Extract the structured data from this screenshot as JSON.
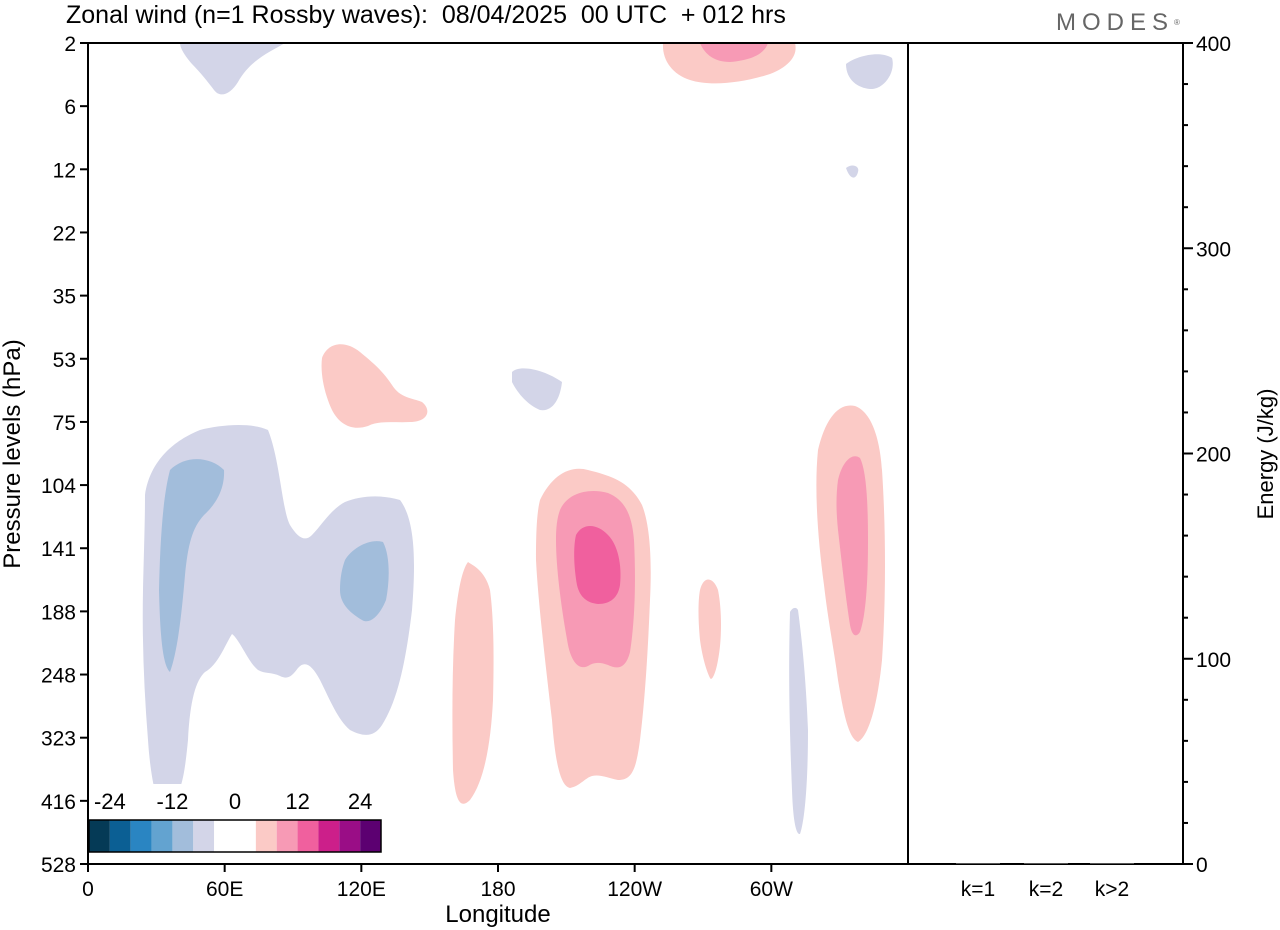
{
  "header": {
    "title": "Zonal wind (n=1 Rossby waves):  08/04/2025  00 UTC  + 012 hrs",
    "brand": "MODES",
    "brand_mark": "®"
  },
  "chart_data": [
    {
      "type": "heatmap",
      "title": "Zonal wind (n=1 Rossby waves):  08/04/2025  00 UTC  + 012 hrs",
      "xlabel": "Longitude",
      "ylabel": "Pressure levels (hPa)",
      "x_ticks": [
        "0",
        "60E",
        "120E",
        "180",
        "120W",
        "60W"
      ],
      "x_tick_values": [
        0,
        60,
        120,
        180,
        240,
        300
      ],
      "xlim": [
        0,
        360
      ],
      "y_ticks": [
        "2",
        "6",
        "12",
        "22",
        "35",
        "53",
        "75",
        "104",
        "141",
        "188",
        "248",
        "323",
        "416",
        "528"
      ],
      "y_scale": "model levels (uneven pressure spacing)",
      "grid": false,
      "colorbar": {
        "placement": "bottom-left inset",
        "tick_labels": [
          "-24",
          "-12",
          "0",
          "12",
          "24"
        ],
        "tick_values": [
          -24,
          -12,
          0,
          12,
          24
        ],
        "bins": [
          -28,
          -24,
          -20,
          -16,
          -12,
          -8,
          -4,
          4,
          8,
          12,
          16,
          20,
          24,
          28
        ],
        "colors": [
          "#053a56",
          "#0b5f94",
          "#2a85c2",
          "#63a3d0",
          "#a2bddb",
          "#d3d5e8",
          "#ffffff",
          "#fbcac6",
          "#f79ab5",
          "#f0609e",
          "#cc1f8a",
          "#9a0d86",
          "#5c0071"
        ]
      },
      "contours": [
        {
          "region": "upper-left near 2 hPa",
          "lon_center": 50,
          "level": "1-2 hPa band",
          "value": -5
        },
        {
          "region": "top near 2 hPa",
          "lon_center": 275,
          "value": 6
        },
        {
          "region": "top core near 2 hPa",
          "lon_center": 280,
          "value": 10
        },
        {
          "region": "upper-right near 6 hPa",
          "lon_center": 345,
          "value": -5
        },
        {
          "region": "small near 12 hPa",
          "lon_center": 343,
          "value": -5
        },
        {
          "region": "near 53-75 hPa",
          "lon_center": 120,
          "value": 6
        },
        {
          "region": "near 53-75 hPa",
          "lon_center": 197,
          "value": -5
        },
        {
          "region": "broad 75-416 hPa",
          "lon_center": 70,
          "value": -6
        },
        {
          "region": "core 104-248 hPa",
          "lon_center": 36,
          "value": -10
        },
        {
          "region": "core 141-188 hPa",
          "lon_center": 121,
          "value": -10
        },
        {
          "region": "130-400 hPa",
          "lon_center": 167,
          "value": 6
        },
        {
          "region": "100-360 hPa",
          "lon_center": 233,
          "value": 6
        },
        {
          "region": "110-330 hPa",
          "lon_center": 233,
          "value": 10
        },
        {
          "region": "core 130-200 hPa",
          "lon_center": 234,
          "value": 14
        },
        {
          "region": "160-260 hPa",
          "lon_center": 273,
          "value": 6
        },
        {
          "region": "180-440 hPa",
          "lon_center": 312,
          "value": -5
        },
        {
          "region": "75-330 hPa",
          "lon_center": 335,
          "value": 6
        },
        {
          "region": "core 90-230 hPa",
          "lon_center": 334,
          "value": 10
        }
      ]
    },
    {
      "type": "bar",
      "title": "",
      "xlabel": "",
      "ylabel": "Energy (J/kg)",
      "categories": [
        "k=1",
        "k=2",
        "k>2"
      ],
      "values": [
        0.4,
        0.3,
        0.3
      ],
      "ylim": [
        0,
        400
      ],
      "y_ticks": [
        0,
        100,
        200,
        300,
        400
      ],
      "y_minor_step": 20
    }
  ]
}
